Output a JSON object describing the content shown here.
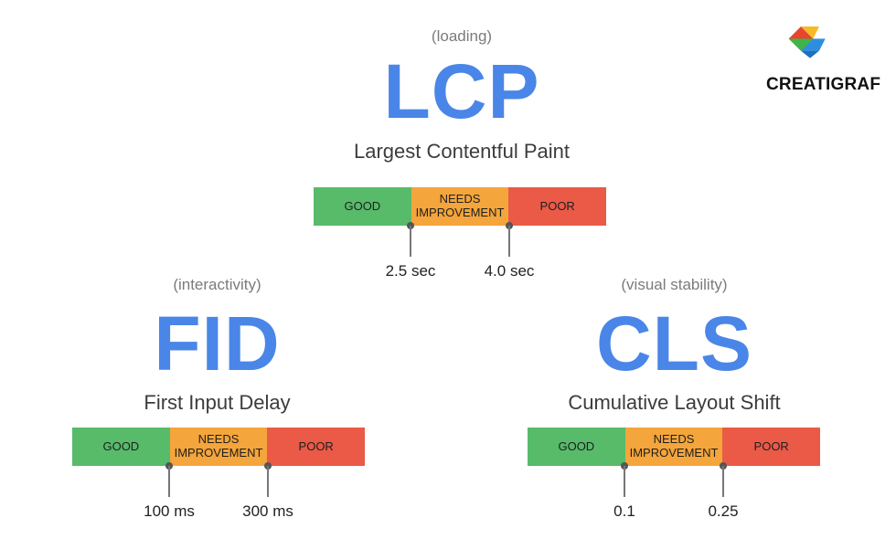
{
  "brand": {
    "name": "CREATIGRAF",
    "colors": [
      "#e8452c",
      "#f7b924",
      "#3fb449",
      "#2d8ee0"
    ]
  },
  "colors": {
    "good": "#57bb6a",
    "needs": "#f4a53b",
    "poor": "#ea5a47",
    "accent": "#4a86e8"
  },
  "lcp": {
    "category": "(loading)",
    "abbr": "LCP",
    "full": "Largest Contentful Paint",
    "good": "GOOD",
    "needs": "NEEDS IMPROVEMENT",
    "poor": "POOR",
    "threshold1": "2.5 sec",
    "threshold2": "4.0 sec"
  },
  "fid": {
    "category": "(interactivity)",
    "abbr": "FID",
    "full": "First Input Delay",
    "good": "GOOD",
    "needs": "NEEDS IMPROVEMENT",
    "poor": "POOR",
    "threshold1": "100 ms",
    "threshold2": "300 ms"
  },
  "cls": {
    "category": "(visual stability)",
    "abbr": "CLS",
    "full": "Cumulative Layout Shift",
    "good": "GOOD",
    "needs": "NEEDS IMPROVEMENT",
    "poor": "POOR",
    "threshold1": "0.1",
    "threshold2": "0.25"
  }
}
